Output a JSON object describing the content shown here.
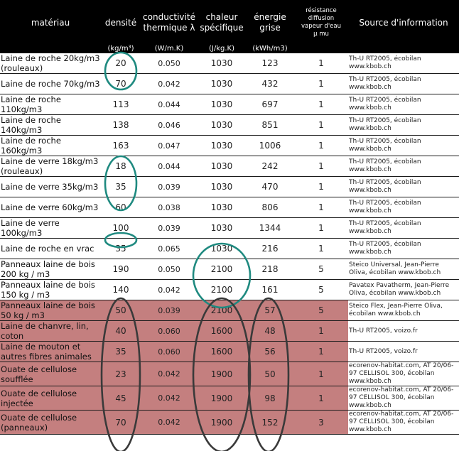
{
  "header": {
    "materiau": "matériau",
    "densite": "densité",
    "conductivite": [
      "conductivité",
      "thermique λ"
    ],
    "chaleur": [
      "chaleur",
      "spécifique"
    ],
    "energie": [
      "énergie",
      "grise"
    ],
    "resistance": [
      "résistance",
      "diffusion",
      "vapeur d'eau",
      "µ mu"
    ],
    "source": "Source d'information",
    "units": {
      "densite": "(kg/m³)",
      "conductivite": "(W/m.K)",
      "chaleur": "(J/kg.K)",
      "energie": "(kWh/m3)"
    }
  },
  "rows": [
    {
      "m": [
        "Laine de roche 20kg/m3",
        "(rouleaux)"
      ],
      "d": "20",
      "l": "0.050",
      "c": "1030",
      "e": "123",
      "r": "1",
      "s": [
        "Th-U RT2005, écobilan",
        "www.kbob.ch"
      ],
      "red": false
    },
    {
      "m": [
        "Laine de roche 70kg/m3"
      ],
      "d": "70",
      "l": "0.042",
      "c": "1030",
      "e": "432",
      "r": "1",
      "s": [
        "Th-U RT2005, écobilan",
        "www.kbob.ch"
      ],
      "red": false
    },
    {
      "m": [
        "Laine de roche",
        "110kg/m3"
      ],
      "d": "113",
      "l": "0.044",
      "c": "1030",
      "e": "697",
      "r": "1",
      "s": [
        "Th-U RT2005, écobilan",
        "www.kbob.ch"
      ],
      "red": false
    },
    {
      "m": [
        "Laine de roche",
        "140kg/m3"
      ],
      "d": "138",
      "l": "0.046",
      "c": "1030",
      "e": "851",
      "r": "1",
      "s": [
        "Th-U RT2005, écobilan",
        "www.kbob.ch"
      ],
      "red": false
    },
    {
      "m": [
        "Laine de roche",
        "160kg/m3"
      ],
      "d": "163",
      "l": "0.047",
      "c": "1030",
      "e": "1006",
      "r": "1",
      "s": [
        "Th-U RT2005, écobilan",
        "www.kbob.ch"
      ],
      "red": false
    },
    {
      "m": [
        "Laine de verre 18kg/m3",
        "(rouleaux)"
      ],
      "d": "18",
      "l": "0.044",
      "c": "1030",
      "e": "242",
      "r": "1",
      "s": [
        "Th-U RT2005, écobilan",
        "www.kbob.ch"
      ],
      "red": false
    },
    {
      "m": [
        "Laine de verre 35kg/m3"
      ],
      "d": "35",
      "l": "0.039",
      "c": "1030",
      "e": "470",
      "r": "1",
      "s": [
        "Th-U RT2005, écobilan",
        "www.kbob.ch"
      ],
      "red": false
    },
    {
      "m": [
        "Laine de verre 60kg/m3"
      ],
      "d": "60",
      "l": "0.038",
      "c": "1030",
      "e": "806",
      "r": "1",
      "s": [
        "Th-U RT2005, écobilan",
        "www.kbob.ch"
      ],
      "red": false
    },
    {
      "m": [
        "Laine de verre",
        "100kg/m3"
      ],
      "d": "100",
      "l": "0.039",
      "c": "1030",
      "e": "1344",
      "r": "1",
      "s": [
        "Th-U RT2005, écobilan",
        "www.kbob.ch"
      ],
      "red": false
    },
    {
      "m": [
        "Laine de roche en vrac"
      ],
      "d": "35",
      "l": "0.065",
      "c": "1030",
      "e": "216",
      "r": "1",
      "s": [
        "Th-U RT2005, écobilan",
        "www.kbob.ch"
      ],
      "red": false
    },
    {
      "m": [
        "Panneaux laine de bois",
        "200 kg / m3"
      ],
      "d": "190",
      "l": "0.050",
      "c": "2100",
      "e": "218",
      "r": "5",
      "s": [
        "Steico Universal, Jean-Pierre",
        "Oliva, écobilan www.kbob.ch"
      ],
      "red": false
    },
    {
      "m": [
        "Panneaux laine de bois",
        "150 kg / m3"
      ],
      "d": "140",
      "l": "0.042",
      "c": "2100",
      "e": "161",
      "r": "5",
      "s": [
        "Pavatex Pavatherm, Jean-Pierre",
        "Oliva, écobilan www.kbob.ch"
      ],
      "red": false
    },
    {
      "m": [
        "Panneaux laine de bois",
        "50 kg / m3"
      ],
      "d": "50",
      "l": "0.039",
      "c": "2100",
      "e": "57",
      "r": "5",
      "s": [
        "Steico Flex, Jean-Pierre Oliva,",
        "écobilan www.kbob.ch"
      ],
      "red": true
    },
    {
      "m": [
        "Laine de chanvre, lin,",
        "coton"
      ],
      "d": "40",
      "l": "0.060",
      "c": "1600",
      "e": "48",
      "r": "1",
      "s": [
        "Th-U RT2005, voizo.fr"
      ],
      "red": true
    },
    {
      "m": [
        "Laine de mouton et",
        "autres fibres animales"
      ],
      "d": "35",
      "l": "0.060",
      "c": "1600",
      "e": "56",
      "r": "1",
      "s": [
        "Th-U RT2005, voizo.fr"
      ],
      "red": true
    },
    {
      "m": [
        "Ouate de cellulose",
        "soufflée"
      ],
      "d": "23",
      "l": "0.042",
      "c": "1900",
      "e": "50",
      "r": "1",
      "s": [
        "ecorenov-habitat.com, AT 20/06-",
        "97 CELLISOL 300, écobilan",
        "www.kbob.ch"
      ],
      "red": true
    },
    {
      "m": [
        "Ouate de cellulose",
        "injectée"
      ],
      "d": "45",
      "l": "0.042",
      "c": "1900",
      "e": "98",
      "r": "1",
      "s": [
        "ecorenov-habitat.com, AT 20/06-",
        "97 CELLISOL 300, écobilan",
        "www.kbob.ch"
      ],
      "red": true
    },
    {
      "m": [
        "Ouate de cellulose",
        "(panneaux)"
      ],
      "d": "70",
      "l": "0.042",
      "c": "1900",
      "e": "152",
      "r": "3",
      "s": [
        "ecorenov-habitat.com, AT 20/06-",
        "97 CELLISOL 300, écobilan",
        "www.kbob.ch"
      ],
      "red": true
    }
  ],
  "colors": {
    "header_bg": "#000000",
    "highlight_row": "#c47f7f",
    "teal_ring": "#1f8a80",
    "dark_ring": "#3a3a3a"
  }
}
